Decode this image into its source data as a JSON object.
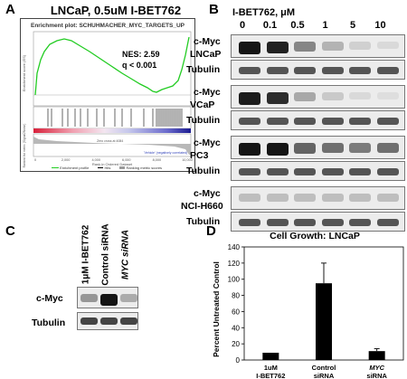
{
  "panelA": {
    "letter": "A",
    "title": "LNCaP, 0.5uM I-BET762",
    "plot_header": "Enrichment plot: SCHUHMACHER_MYC_TARGETS_UP",
    "nes": "NES: 2.59",
    "q": "q < 0.001",
    "es_axis_label": "Enrichment score (ES)",
    "metric_axis_label": "Ranked list metric (Signal2Noise)",
    "x_axis_label": "Rank in Ordered Dataset",
    "x_ticks": [
      "0",
      "2,000",
      "4,000",
      "6,000",
      "8,000",
      "10,000"
    ],
    "pos_label": "'Drug' (positively correlated)",
    "neg_label": "'Vehicle' (negatively correlated)",
    "zero_cross": "Zero cross at 4084",
    "legend": [
      "Enrichment profile",
      "Hits",
      "Ranking metric scores"
    ],
    "colors": {
      "profile": "#22cc22",
      "hits": "#000000",
      "metric": "#999999"
    }
  },
  "panelB": {
    "letter": "B",
    "header": "I-BET762, μM",
    "concentrations": [
      "0",
      "0.1",
      "0.5",
      "1",
      "5",
      "10"
    ],
    "cell_lines": [
      {
        "name": "LNCaP",
        "target": "c-Myc",
        "loading": "Tubulin",
        "myc_levels": [
          0.95,
          0.9,
          0.45,
          0.25,
          0.12,
          0.08
        ]
      },
      {
        "name": "VCaP",
        "target": "c-Myc",
        "loading": "Tubulin",
        "myc_levels": [
          0.92,
          0.85,
          0.3,
          0.15,
          0.08,
          0.06
        ]
      },
      {
        "name": "PC3",
        "target": "c-Myc",
        "loading": "Tubulin",
        "myc_levels": [
          0.95,
          0.95,
          0.6,
          0.55,
          0.5,
          0.55
        ]
      },
      {
        "name": "NCI-H660",
        "target": "c-Myc",
        "loading": "Tubulin",
        "myc_levels": [
          0.2,
          0.2,
          0.2,
          0.2,
          0.2,
          0.2
        ]
      }
    ]
  },
  "panelC": {
    "letter": "C",
    "lanes": [
      "1μM I-BET762",
      "Control siRNA",
      "MYC siRNA"
    ],
    "target": "c-Myc",
    "loading": "Tubulin",
    "myc_levels": [
      0.35,
      0.95,
      0.25
    ]
  },
  "panelD": {
    "letter": "D",
    "chart_data": {
      "type": "bar",
      "title": "Cell Growth: LNCaP",
      "ylabel": "Percent Untreated Control",
      "xlabel": "",
      "categories": [
        "1uM I-BET762",
        "Control siRNA",
        "MYC siRNA"
      ],
      "values": [
        9,
        95,
        11
      ],
      "errors": [
        0,
        25,
        3
      ],
      "ylim": [
        0,
        140
      ],
      "yticks": [
        0,
        20,
        40,
        60,
        80,
        100,
        120,
        140
      ],
      "bar_color": "#000000"
    }
  }
}
